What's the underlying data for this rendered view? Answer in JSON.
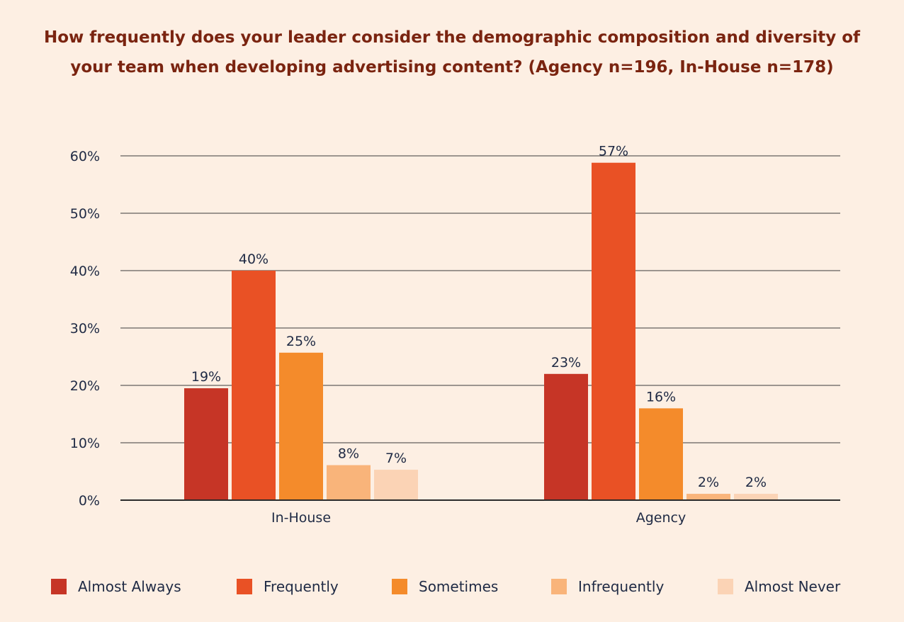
{
  "chart_data": {
    "type": "bar",
    "title_lines": [
      "How frequently does your leader consider the demographic composition and diversity of",
      "your team when developing advertising content? (Agency n=196, In-House n=178)"
    ],
    "categories": [
      "In-House",
      "Agency"
    ],
    "series": [
      {
        "name": "Almost Always",
        "color": "#c63526",
        "values": [
          19,
          23
        ],
        "labels": [
          "19%",
          "23%"
        ],
        "heights": [
          19.5,
          22.0
        ]
      },
      {
        "name": "Frequently",
        "color": "#e95125",
        "values": [
          40,
          57
        ],
        "labels": [
          "40%",
          "57%"
        ],
        "heights": [
          40.0,
          58.8
        ]
      },
      {
        "name": "Sometimes",
        "color": "#f48b2b",
        "values": [
          25,
          16
        ],
        "labels": [
          "25%",
          "16%"
        ],
        "heights": [
          25.7,
          16.0
        ]
      },
      {
        "name": "Infrequently",
        "color": "#f9b47a",
        "values": [
          8,
          2
        ],
        "labels": [
          "8%",
          "2%"
        ],
        "heights": [
          6.1,
          1.1
        ]
      },
      {
        "name": "Almost Never",
        "color": "#fbd3b5",
        "values": [
          7,
          2
        ],
        "labels": [
          "7%",
          "2%"
        ],
        "heights": [
          5.3,
          1.1
        ]
      }
    ],
    "yticks": [
      "0%",
      "10%",
      "20%",
      "30%",
      "40%",
      "50%",
      "60%"
    ],
    "ylim": [
      0,
      60
    ],
    "xlabel": "",
    "ylabel": "",
    "legend_position": "bottom"
  }
}
